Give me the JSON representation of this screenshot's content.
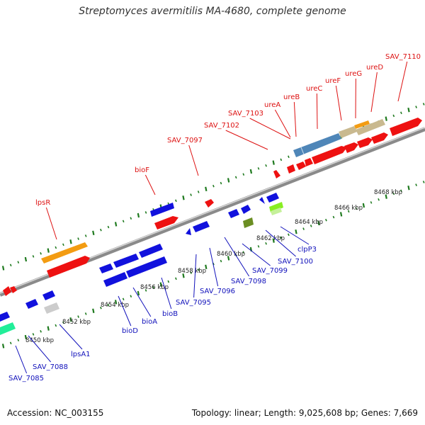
{
  "title": "Streptomyces avermitilis MA-4680, complete genome",
  "footer": {
    "accession": "Accession: NC_003155",
    "summary": "Topology: linear; Length: 9,025,608 bp; Genes: 7,669"
  },
  "colors": {
    "backbone": "#8a8a8a",
    "tick": "#1f7a1f",
    "upper_label": "#dd1111",
    "lower_label": "#1111bb"
  },
  "scale_labels": [
    "8450 kbp",
    "8452 kbp",
    "8454 kbp",
    "8456 kbp",
    "8458 kbp",
    "8460 kbp",
    "8462 kbp",
    "8464 kbp",
    "8466 kbp",
    "8468 kbp"
  ],
  "upper_labels": [
    "lpsR",
    "bioF",
    "SAV_7097",
    "SAV_7102",
    "SAV_7103",
    "ureA",
    "ureB",
    "ureC",
    "ureF",
    "ureG",
    "ureD",
    "SAV_7110"
  ],
  "lower_labels": [
    "SAV_7085",
    "SAV_7088",
    "lpsA1",
    "bioD",
    "bioA",
    "bioB",
    "SAV_7095",
    "SAV_7096",
    "SAV_7098",
    "SAV_7099",
    "SAV_7100",
    "clpP3"
  ]
}
